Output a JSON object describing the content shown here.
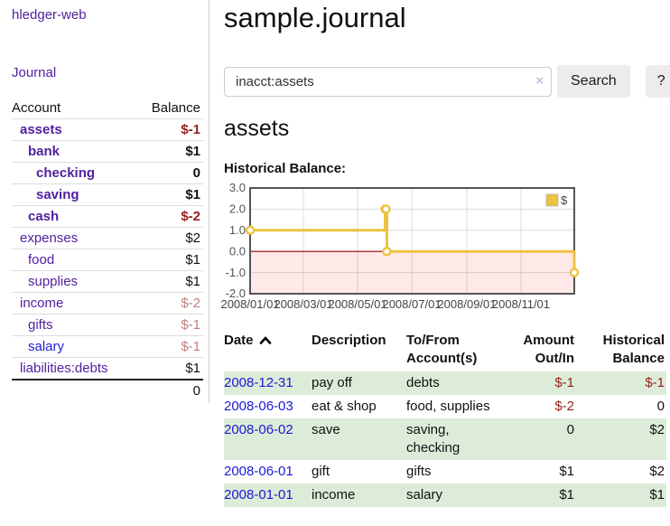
{
  "app": {
    "title": "hledger-web"
  },
  "sidebar": {
    "journal_link": "Journal",
    "table": {
      "account_header": "Account",
      "balance_header": "Balance",
      "accounts": [
        {
          "name": "assets",
          "indent": 1,
          "bold": true,
          "balance": "$-1",
          "balance_style": "neg-strong"
        },
        {
          "name": "bank",
          "indent": 2,
          "bold": true,
          "balance": "$1",
          "balance_style": "pos"
        },
        {
          "name": "checking",
          "indent": 3,
          "bold": true,
          "balance": "0",
          "balance_style": "pos"
        },
        {
          "name": "saving",
          "indent": 3,
          "bold": true,
          "balance": "$1",
          "balance_style": "pos"
        },
        {
          "name": "cash",
          "indent": 2,
          "bold": true,
          "balance": "$-2",
          "balance_style": "neg-strong"
        },
        {
          "name": "expenses",
          "indent": 1,
          "bold": false,
          "balance": "$2",
          "balance_style": "pos"
        },
        {
          "name": "food",
          "indent": 2,
          "bold": false,
          "balance": "$1",
          "balance_style": "pos"
        },
        {
          "name": "supplies",
          "indent": 2,
          "bold": false,
          "balance": "$1",
          "balance_style": "pos"
        },
        {
          "name": "income",
          "indent": 1,
          "bold": false,
          "balance": "$-2",
          "balance_style": "neg-muted"
        },
        {
          "name": "gifts",
          "indent": 2,
          "bold": false,
          "balance": "$-1",
          "balance_style": "neg-muted"
        },
        {
          "name": "salary",
          "indent": 2,
          "bold": false,
          "balance": "$-1",
          "balance_style": "neg-muted",
          "link_color": "blue"
        },
        {
          "name": "liabilities:debts",
          "indent": 1,
          "bold": false,
          "balance": "$1",
          "balance_style": "pos"
        }
      ],
      "total": "0"
    }
  },
  "header": {
    "title": "sample.journal"
  },
  "search": {
    "query": "inacct:assets",
    "clear_icon": "×",
    "button_label": "Search",
    "help_label": "?"
  },
  "account_page": {
    "heading": "assets",
    "chart_title": "Historical Balance:"
  },
  "chart_data": {
    "type": "line",
    "step": true,
    "title": "Historical Balance:",
    "series": [
      {
        "name": "$",
        "color": "#edc240",
        "points": [
          [
            "2008-01-01",
            1
          ],
          [
            "2008-06-01",
            2
          ],
          [
            "2008-06-02",
            2
          ],
          [
            "2008-06-03",
            0
          ],
          [
            "2008-12-31",
            -1
          ]
        ]
      }
    ],
    "x_ticks": [
      "2008/01/01",
      "2008/03/01",
      "2008/05/01",
      "2008/07/01",
      "2008/09/01",
      "2008/11/01"
    ],
    "y_ticks": [
      3.0,
      2.0,
      1.0,
      0.0,
      -1.0,
      -2.0
    ],
    "xlim": [
      "2008-01-01",
      "2008-12-31"
    ],
    "ylim": [
      -2,
      3
    ],
    "grid": true,
    "grid_color": "#dcdcdc",
    "border_color": "#545454",
    "tick_label_color": "#545454",
    "negative_region_color": "rgba(255,0,0,0.09)",
    "zero_line_color": "#8b0000",
    "legend": {
      "label": "$",
      "position": "top-right"
    }
  },
  "register": {
    "columns": [
      {
        "label": "Date",
        "sorted": "asc"
      },
      {
        "label": "Description"
      },
      {
        "label": "To/From Account(s)"
      },
      {
        "label": "Amount Out/In"
      },
      {
        "label": "Historical Balance"
      }
    ],
    "rows": [
      {
        "date": "2008-12-31",
        "description": "pay off",
        "accounts": "debts",
        "amount": "$-1",
        "amount_neg": true,
        "balance": "$-1",
        "balance_neg": true
      },
      {
        "date": "2008-06-03",
        "description": "eat & shop",
        "accounts": "food, supplies",
        "amount": "$-2",
        "amount_neg": true,
        "balance": "0",
        "balance_neg": false
      },
      {
        "date": "2008-06-02",
        "description": "save",
        "accounts": "saving, checking",
        "amount": "0",
        "amount_neg": false,
        "balance": "$2",
        "balance_neg": false
      },
      {
        "date": "2008-06-01",
        "description": "gift",
        "accounts": "gifts",
        "amount": "$1",
        "amount_neg": false,
        "balance": "$2",
        "balance_neg": false
      },
      {
        "date": "2008-01-01",
        "description": "income",
        "accounts": "salary",
        "amount": "$1",
        "amount_neg": false,
        "balance": "$1",
        "balance_neg": false
      }
    ]
  }
}
